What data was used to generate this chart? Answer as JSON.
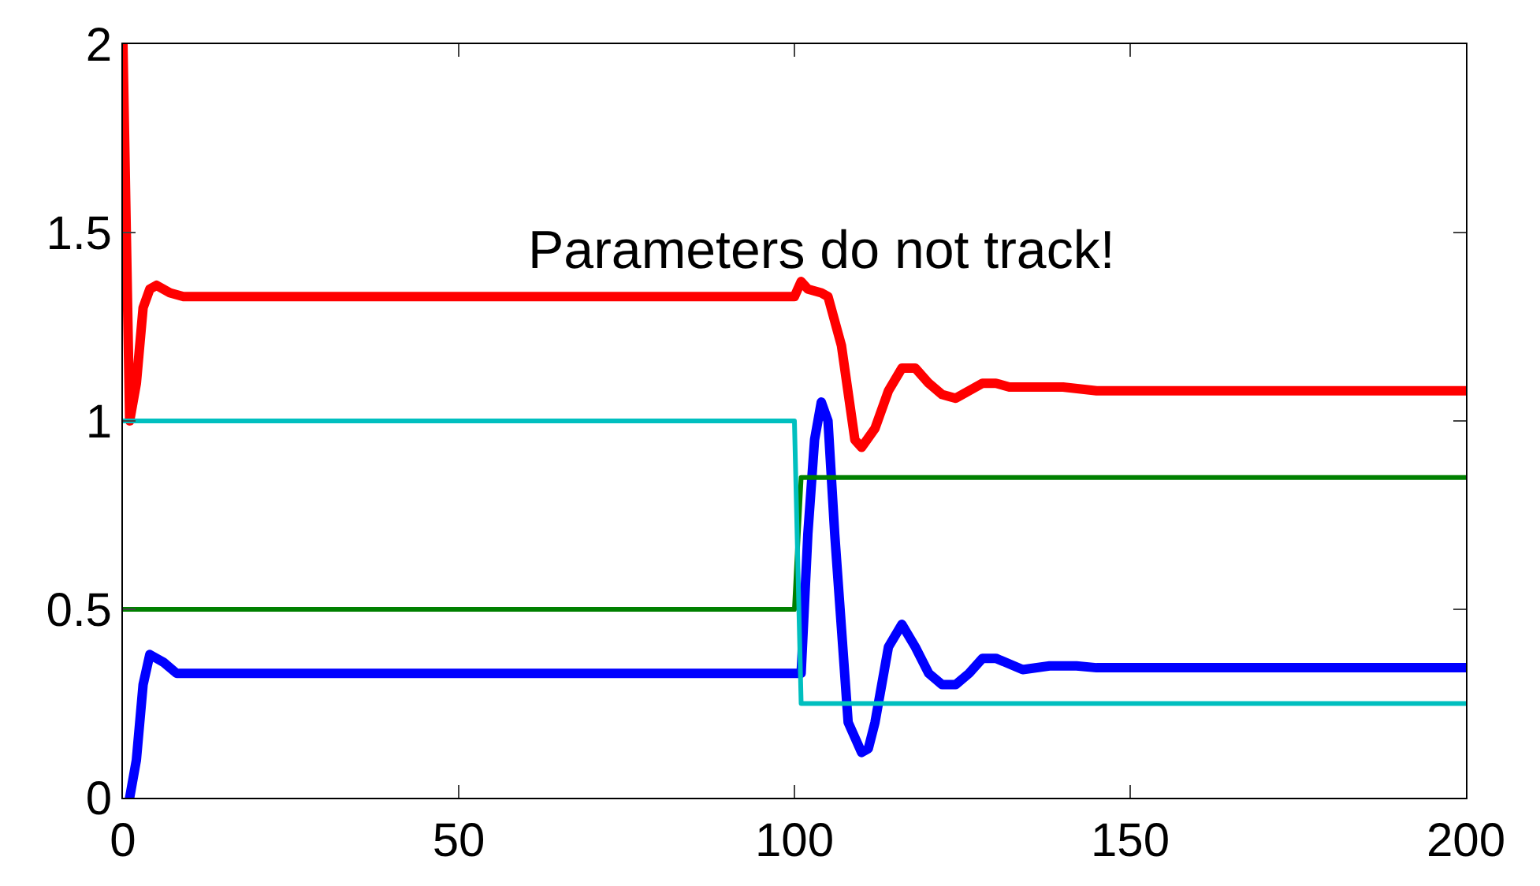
{
  "chart_data": {
    "type": "line",
    "annotations": [
      "Parameters do not track!"
    ],
    "xlim": [
      0,
      200
    ],
    "ylim": [
      0,
      2
    ],
    "xticks": [
      0,
      50,
      100,
      150,
      200
    ],
    "yticks": [
      0,
      0.5,
      1,
      1.5,
      2
    ],
    "marker": "none",
    "line_style": "solid",
    "series": [
      {
        "color": "#ff0000",
        "x": [
          0,
          1,
          2,
          3,
          4,
          5,
          7,
          9,
          100,
          101,
          102,
          104,
          105,
          107,
          109,
          110,
          112,
          114,
          116,
          118,
          120,
          122,
          124,
          126,
          128,
          130,
          132,
          140,
          145,
          200
        ],
        "values": [
          2,
          1,
          1.1,
          1.3,
          1.35,
          1.36,
          1.34,
          1.33,
          1.33,
          1.37,
          1.35,
          1.34,
          1.33,
          1.2,
          0.95,
          0.93,
          0.98,
          1.08,
          1.14,
          1.14,
          1.1,
          1.07,
          1.06,
          1.08,
          1.1,
          1.1,
          1.09,
          1.09,
          1.08,
          1.08
        ]
      },
      {
        "color": "#0000ff",
        "x": [
          1,
          2,
          3,
          4,
          6,
          8,
          101,
          102,
          103,
          104,
          105,
          106,
          107,
          108,
          110,
          111,
          112,
          114,
          116,
          118,
          120,
          122,
          124,
          126,
          128,
          130,
          134,
          138,
          142,
          145,
          200
        ],
        "values": [
          0,
          0.1,
          0.3,
          0.38,
          0.36,
          0.33,
          0.33,
          0.7,
          0.95,
          1.05,
          1.0,
          0.7,
          0.45,
          0.2,
          0.12,
          0.13,
          0.2,
          0.4,
          0.46,
          0.4,
          0.33,
          0.3,
          0.3,
          0.33,
          0.37,
          0.37,
          0.34,
          0.35,
          0.35,
          0.345,
          0.345
        ]
      },
      {
        "color": "#008000",
        "x": [
          0,
          100,
          101,
          200
        ],
        "values": [
          0.5,
          0.5,
          0.85,
          0.85
        ]
      },
      {
        "color": "#00bfbf",
        "x": [
          0,
          100,
          101,
          200
        ],
        "values": [
          1,
          1,
          0.25,
          0.25
        ]
      }
    ]
  }
}
